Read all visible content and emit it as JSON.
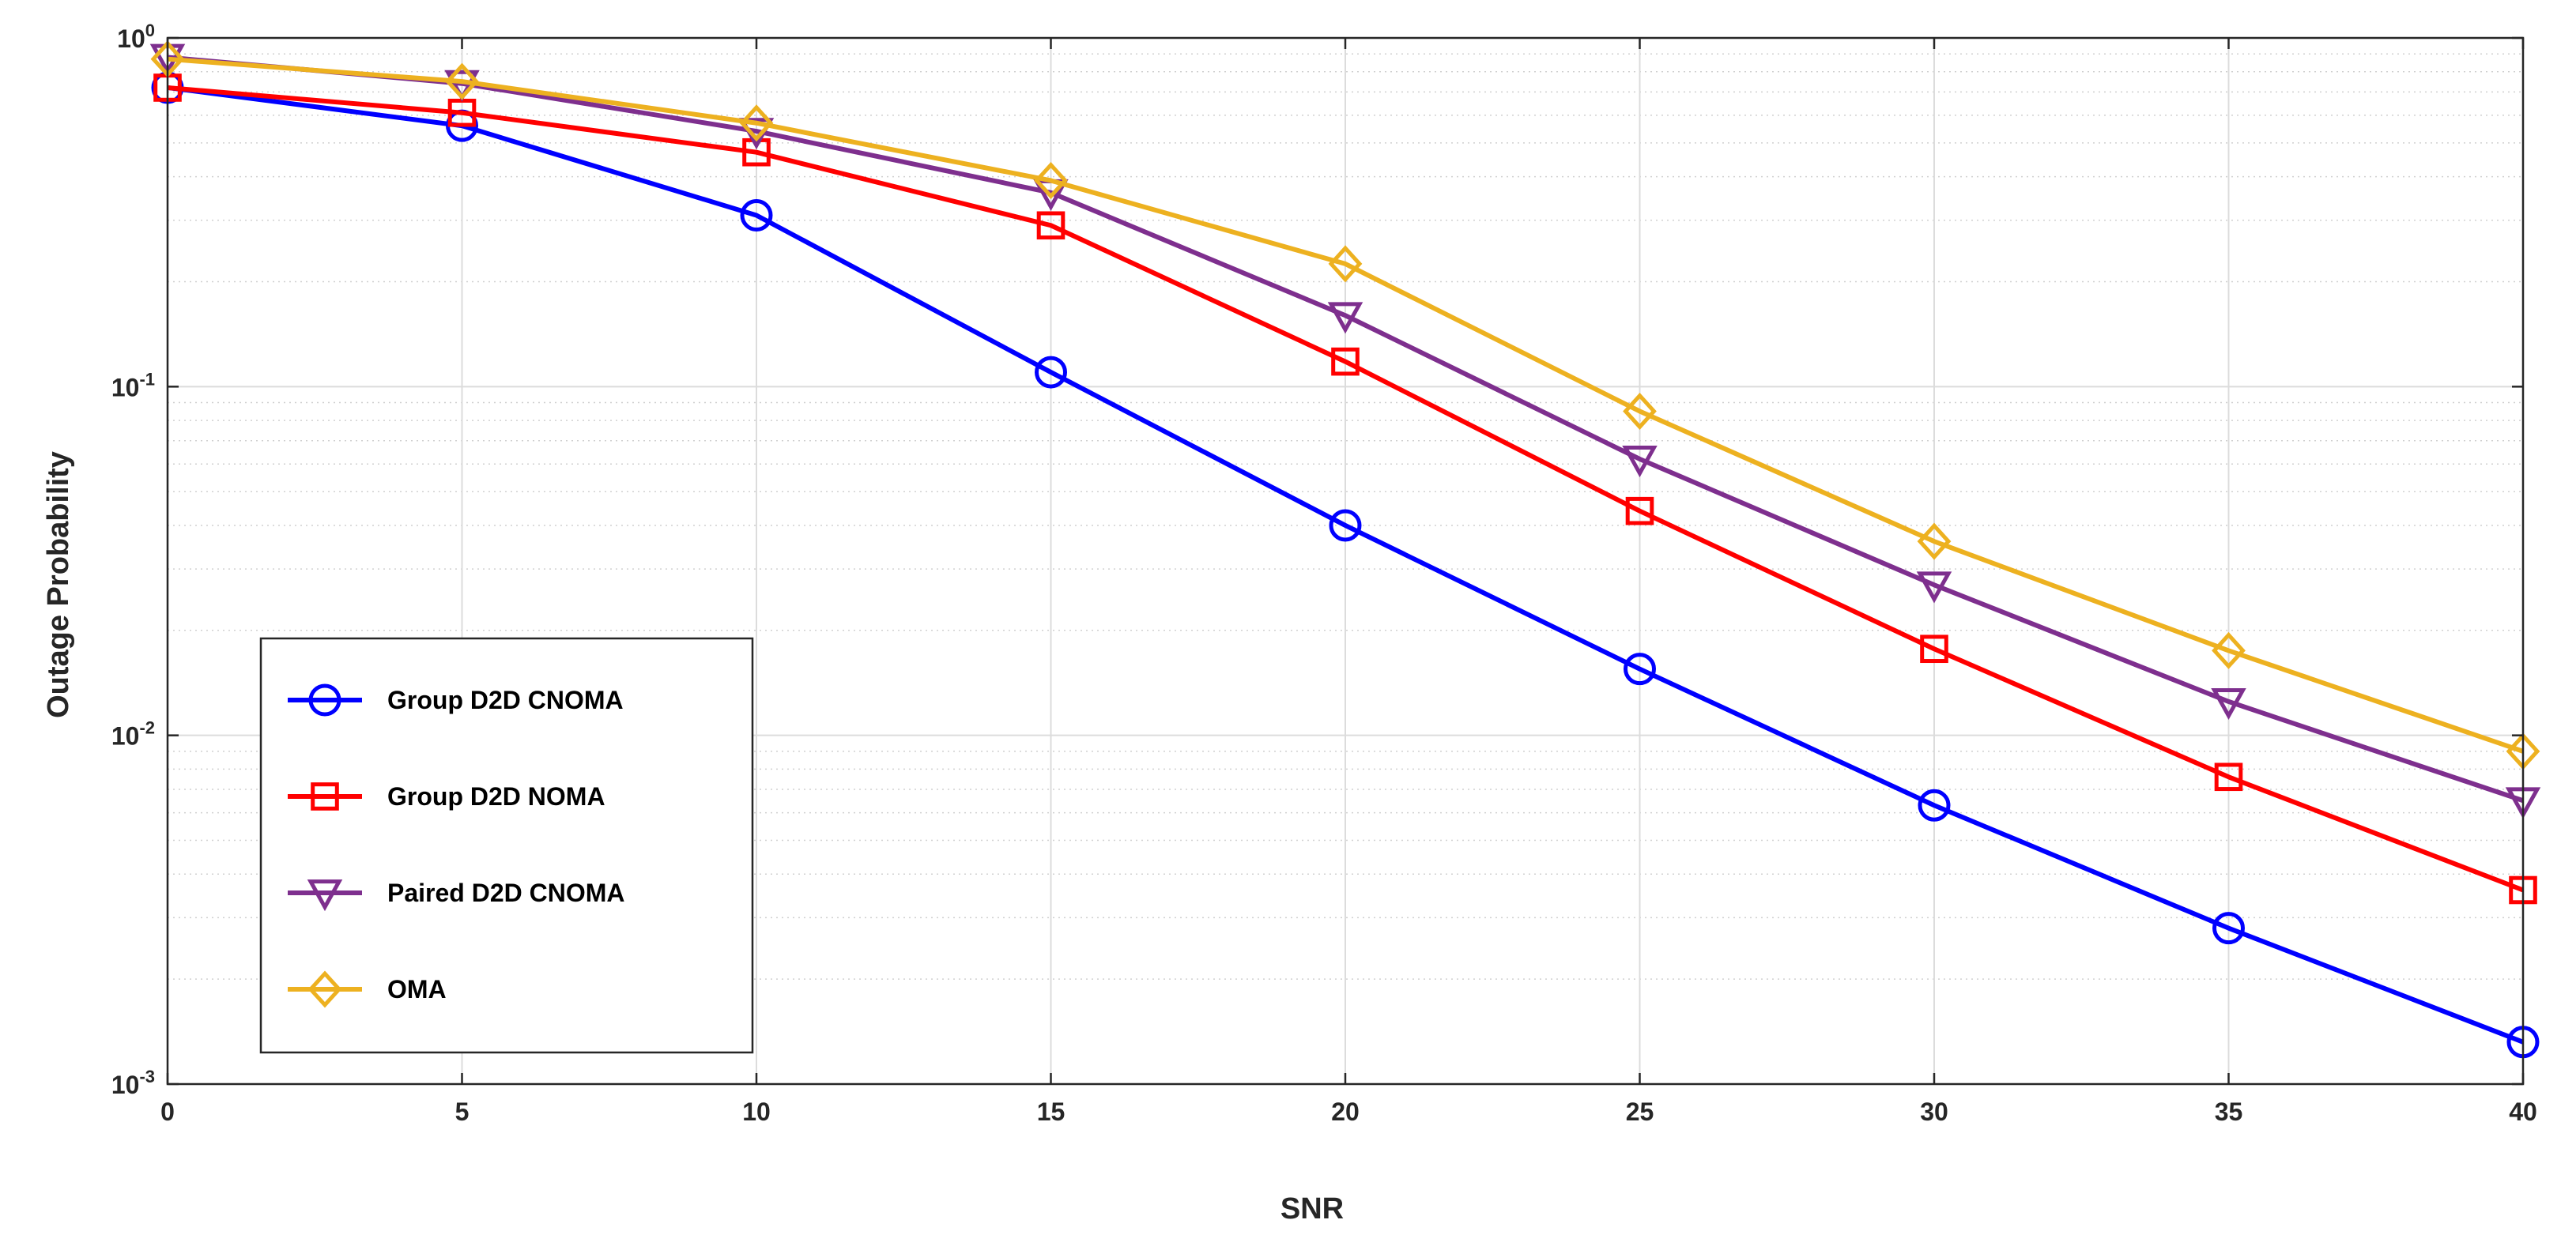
{
  "chart_data": {
    "type": "line",
    "title": "",
    "xlabel": "SNR",
    "ylabel": "Outage Probability",
    "x": [
      0,
      5,
      10,
      15,
      20,
      25,
      30,
      35,
      40
    ],
    "xlim": [
      0,
      40
    ],
    "ylim": [
      0.001,
      1
    ],
    "yscale": "log",
    "xticks": [
      0,
      5,
      10,
      15,
      20,
      25,
      30,
      35,
      40
    ],
    "yticks": [
      {
        "value": 1,
        "base": "10",
        "exp": "0"
      },
      {
        "value": 0.1,
        "base": "10",
        "exp": "-1"
      },
      {
        "value": 0.01,
        "base": "10",
        "exp": "-2"
      },
      {
        "value": 0.001,
        "base": "10",
        "exp": "-3"
      }
    ],
    "grid": true,
    "legend_position": "left-middle",
    "series": [
      {
        "name": "Group D2D CNOMA",
        "color": "#0000ff",
        "marker": "circle",
        "values": [
          0.72,
          0.56,
          0.31,
          0.11,
          0.04,
          0.0155,
          0.0063,
          0.0028,
          0.00132
        ]
      },
      {
        "name": "Group D2D NOMA",
        "color": "#ff0000",
        "marker": "square",
        "values": [
          0.72,
          0.61,
          0.47,
          0.29,
          0.118,
          0.044,
          0.0177,
          0.0076,
          0.0036
        ]
      },
      {
        "name": "Paired D2D CNOMA",
        "color": "#7e2f8e",
        "marker": "triangle-down",
        "values": [
          0.88,
          0.74,
          0.54,
          0.36,
          0.16,
          0.062,
          0.027,
          0.0125,
          0.0065
        ]
      },
      {
        "name": "OMA",
        "color": "#edb120",
        "marker": "diamond",
        "values": [
          0.87,
          0.75,
          0.57,
          0.39,
          0.225,
          0.085,
          0.036,
          0.0175,
          0.009
        ]
      }
    ]
  }
}
